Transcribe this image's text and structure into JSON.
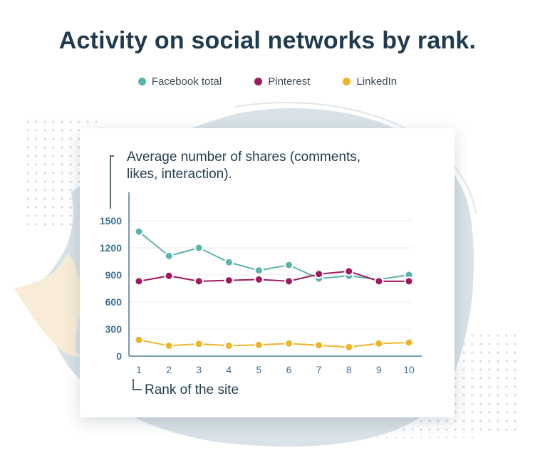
{
  "title": "Activity on social networks by rank.",
  "colors": {
    "facebook": "#5eb3ad",
    "pinterest": "#a0195f",
    "linkedin": "#f0b429",
    "axis": "#7c9bb3",
    "tick_text": "#3f7092",
    "title": "#1f3b4d"
  },
  "legend": [
    {
      "label": "Facebook total",
      "color": "#5eb3ad"
    },
    {
      "label": "Pinterest",
      "color": "#a0195f"
    },
    {
      "label": "LinkedIn",
      "color": "#f0b429"
    }
  ],
  "chart_data": {
    "type": "line",
    "title": "Activity on social networks by rank.",
    "ylabel": "Average number of shares (comments, likes, interaction).",
    "xlabel": "Rank of the site",
    "x": [
      1,
      2,
      3,
      4,
      5,
      6,
      7,
      8,
      9,
      10
    ],
    "ylim": [
      0,
      1500
    ],
    "yticks": [
      0,
      300,
      600,
      900,
      1200,
      1500
    ],
    "grid": true,
    "legend_position": "top",
    "series": [
      {
        "name": "Facebook total",
        "color": "#5eb3ad",
        "values": [
          1380,
          1110,
          1200,
          1040,
          950,
          1010,
          860,
          890,
          850,
          900
        ]
      },
      {
        "name": "Pinterest",
        "color": "#a0195f",
        "values": [
          830,
          890,
          830,
          840,
          850,
          830,
          910,
          940,
          830,
          830
        ]
      },
      {
        "name": "LinkedIn",
        "color": "#f0b429",
        "values": [
          180,
          115,
          135,
          115,
          125,
          140,
          120,
          100,
          140,
          150
        ]
      }
    ]
  }
}
